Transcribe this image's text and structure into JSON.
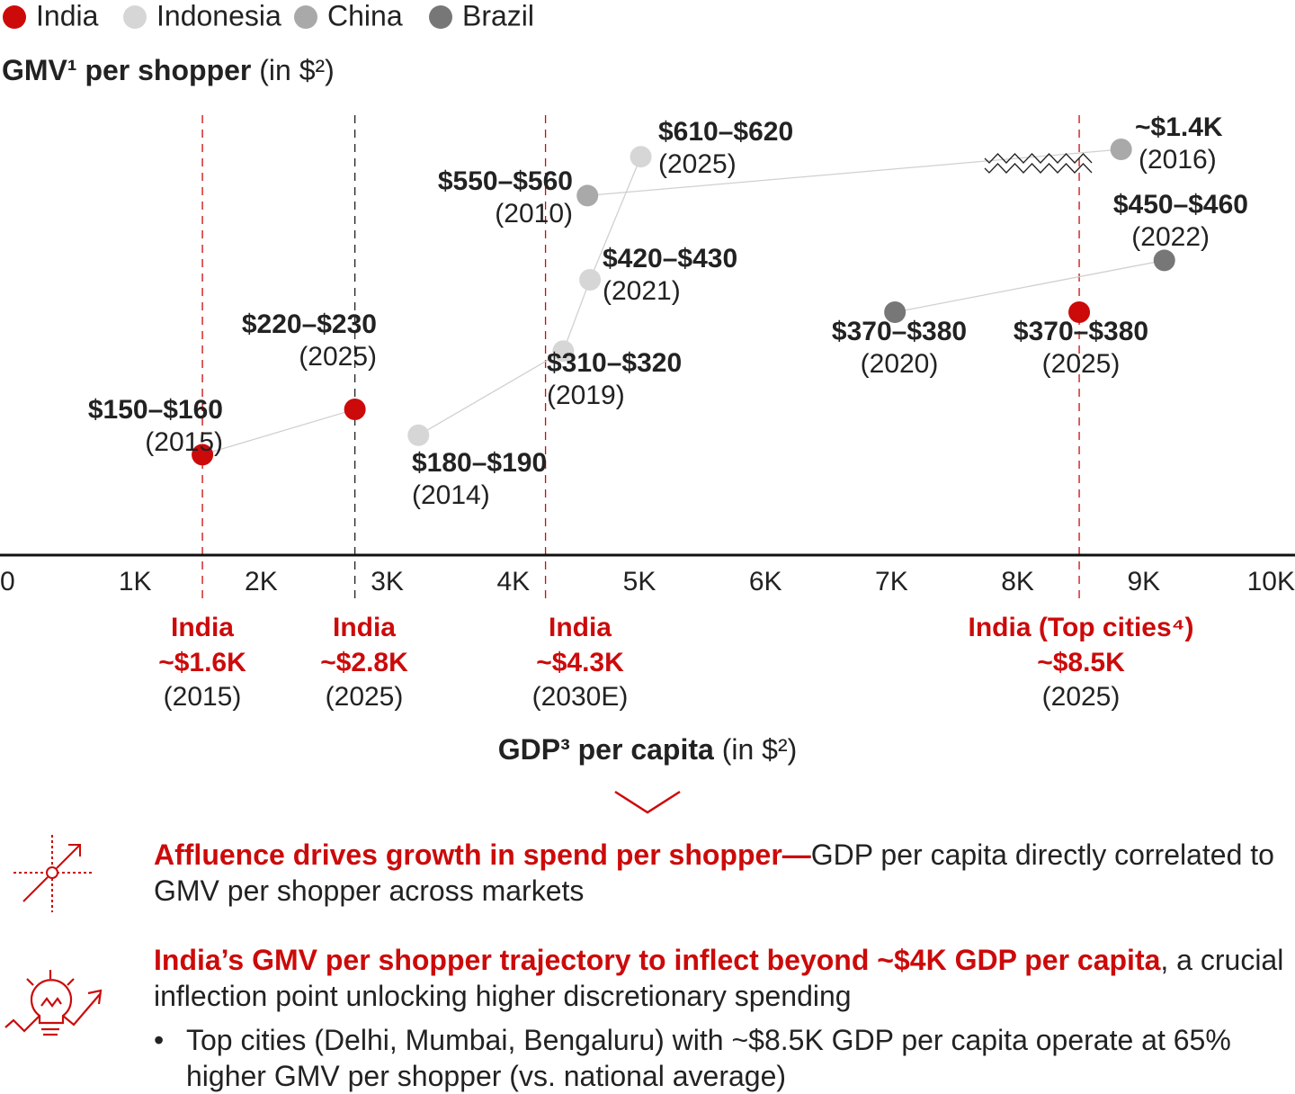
{
  "colors": {
    "India": "#cc0a0a",
    "Indonesia": "#d6d6d6",
    "China": "#a9a9a9",
    "Brazil": "#777777",
    "line": "#d0d0d0"
  },
  "chart_data": {
    "type": "scatter",
    "legend": [
      "India",
      "Indonesia",
      "China",
      "Brazil"
    ],
    "legend_position": "top-left",
    "ylabel": {
      "bold": "GMV¹ per shopper",
      "rest": " (in $²)"
    },
    "xlabel": {
      "bold": "GDP³ per capita",
      "rest": " (in $²)"
    },
    "xlim": [
      0,
      10000
    ],
    "x_ticks": [
      "0",
      "1K",
      "2K",
      "3K",
      "4K",
      "5K",
      "6K",
      "7K",
      "8K",
      "9K",
      "10K"
    ],
    "y_axis_break_above": 700,
    "series": [
      {
        "name": "India",
        "connected": true,
        "points": [
          {
            "id": "in15",
            "gdp": 1600,
            "gmv_low": 150,
            "gmv_high": 160,
            "value": "$150–$160",
            "year": "(2015)"
          },
          {
            "id": "in25",
            "gdp": 2800,
            "gmv_low": 220,
            "gmv_high": 230,
            "value": "$220–$230",
            "year": "(2025)"
          }
        ]
      },
      {
        "name": "Indonesia",
        "connected": true,
        "points": [
          {
            "id": "id14",
            "gdp": 3300,
            "gmv_low": 180,
            "gmv_high": 190,
            "value": "$180–$190",
            "year": "(2014)"
          },
          {
            "id": "id19",
            "gdp": 4440,
            "gmv_low": 310,
            "gmv_high": 320,
            "value": "$310–$320",
            "year": "(2019)"
          },
          {
            "id": "id21",
            "gdp": 4650,
            "gmv_low": 420,
            "gmv_high": 430,
            "value": "$420–$430",
            "year": "(2021)"
          },
          {
            "id": "id25",
            "gdp": 5050,
            "gmv_low": 610,
            "gmv_high": 620,
            "value": "$610–$620",
            "year": "(2025)"
          }
        ]
      },
      {
        "name": "China",
        "connected": true,
        "points": [
          {
            "id": "cn10",
            "gdp": 4630,
            "gmv_low": 550,
            "gmv_high": 560,
            "value": "$550–$560",
            "year": "(2010)"
          },
          {
            "id": "cn16",
            "gdp": 8830,
            "gmv_low": 1400,
            "gmv_high": 1400,
            "value": "~$1.4K",
            "year": "(2016)",
            "axis_break": true
          }
        ]
      },
      {
        "name": "Brazil",
        "connected": true,
        "points": [
          {
            "id": "br20",
            "gdp": 7050,
            "gmv_low": 370,
            "gmv_high": 380,
            "value": "$370–$380",
            "year": "(2020)"
          },
          {
            "id": "br22",
            "gdp": 9170,
            "gmv_low": 450,
            "gmv_high": 460,
            "value": "$450–$460",
            "year": "(2022)"
          }
        ]
      },
      {
        "name": "India (Top cities)",
        "color_of": "India",
        "connected": false,
        "points": [
          {
            "id": "intop",
            "gdp": 8500,
            "gmv_low": 370,
            "gmv_high": 380,
            "value": "$370–$380",
            "year": "(2025)"
          }
        ]
      }
    ],
    "reference_lines": [
      {
        "id": "r1",
        "gdp": 1600,
        "label": "India",
        "value": "~$1.6K",
        "year": "(2015)",
        "color": "red"
      },
      {
        "id": "r2",
        "gdp": 2800,
        "label": "India",
        "value": "~$2.8K",
        "year": "(2025)",
        "color": "black"
      },
      {
        "id": "r3",
        "gdp": 4300,
        "label": "India",
        "value": "~$4.3K",
        "year": "(2030E)",
        "color": "red"
      },
      {
        "id": "r4",
        "gdp": 8500,
        "label": "India (Top cities⁴)",
        "value": "~$8.5K",
        "year": "(2025)",
        "color": "red"
      }
    ]
  },
  "insights": [
    {
      "icon": "correlation-icon",
      "highlight": "Affluence drives growth in spend per shopper—",
      "text": "GDP per capita directly correlated to GMV per shopper across markets"
    },
    {
      "icon": "lightbulb-growth-icon",
      "highlight": "India’s GMV per shopper trajectory to inflect beyond ~$4K GDP per capita",
      "text": ", a crucial inflection point unlocking higher discretionary spending",
      "bullet": "Top cities (Delhi, Mumbai, Bengaluru) with ~$8.5K GDP per capita operate at 65% higher GMV per shopper (vs. national average)"
    }
  ]
}
